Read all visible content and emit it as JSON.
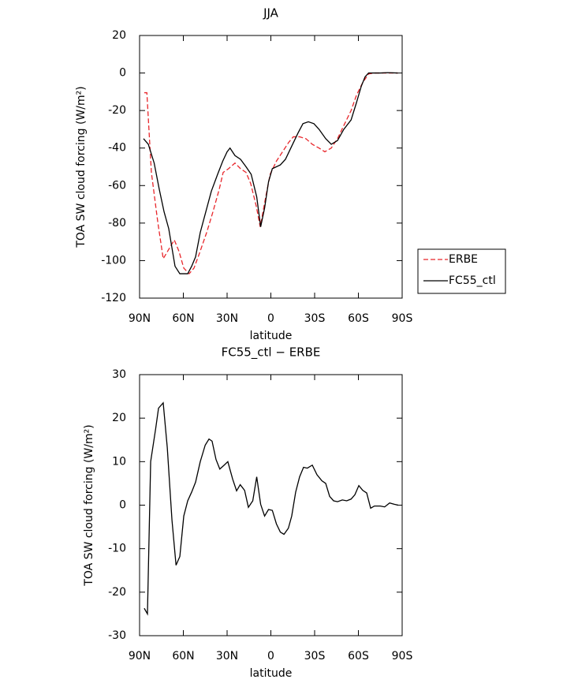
{
  "chart_data": [
    {
      "type": "line",
      "title": "JJA",
      "xlabel": "latitude",
      "ylabel": "TOA SW cloud forcing (W/m²)",
      "xlim": [
        90,
        -90
      ],
      "xticks": [
        {
          "value": 90,
          "label": "90N"
        },
        {
          "value": 60,
          "label": "60N"
        },
        {
          "value": 30,
          "label": "30N"
        },
        0,
        {
          "value": -30,
          "label": "30S"
        },
        {
          "value": -60,
          "label": "60S"
        },
        {
          "value": -90,
          "label": "90S"
        }
      ],
      "ylim": [
        -120,
        20
      ],
      "yticks": [
        -120,
        -100,
        -80,
        -60,
        -40,
        -20,
        0,
        20
      ],
      "legend": "right",
      "series": [
        {
          "name": "ERBE",
          "color": "#e8262b",
          "style": "dashed",
          "x": [
            86.8,
            85,
            81.9,
            77.6,
            73.8,
            70,
            66.2,
            63,
            59.7,
            56,
            52.7,
            48.9,
            44,
            39.7,
            35.4,
            32.7,
            29,
            24.6,
            20.8,
            17,
            13.8,
            10,
            7.3,
            3.5,
            0.5,
            -3.8,
            -8,
            -12.2,
            -15.4,
            -19.7,
            -24,
            -28.4,
            -33,
            -37,
            -41.4,
            -45.7,
            -50,
            -55,
            -58.6,
            -63,
            -67,
            -71,
            -87
          ],
          "values": [
            -10.5,
            -10.5,
            -53,
            -79,
            -99,
            -94,
            -89,
            -95,
            -104,
            -107,
            -104,
            -96,
            -85,
            -74,
            -62,
            -53,
            -51,
            -48,
            -51,
            -53,
            -59,
            -71,
            -82,
            -66,
            -54,
            -47,
            -42,
            -37,
            -34,
            -34,
            -35,
            -38,
            -40,
            -42,
            -40,
            -35,
            -28,
            -20,
            -12,
            -5,
            -0.5,
            0,
            0
          ]
        },
        {
          "name": "FC55_ctl",
          "color": "#000000",
          "style": "solid",
          "x": [
            87.3,
            84,
            80,
            76.5,
            73.2,
            70,
            65.7,
            62.4,
            57,
            54.3,
            51.6,
            48.4,
            44.6,
            40.8,
            36.5,
            33,
            30,
            28,
            24.6,
            20.8,
            17,
            13.5,
            9.7,
            7,
            4.3,
            1.6,
            -1,
            -6.5,
            -10,
            -14.3,
            -18.6,
            -22,
            -25.7,
            -29.5,
            -33,
            -37.6,
            -41.4,
            -45.7,
            -50,
            -55,
            -58.6,
            -62,
            -64.6,
            -67,
            -75,
            -80,
            -87
          ],
          "values": [
            -35,
            -38,
            -48,
            -62,
            -74,
            -83,
            -103,
            -107,
            -107,
            -103,
            -98,
            -85,
            -74,
            -63,
            -54,
            -47,
            -42,
            -40,
            -44,
            -46,
            -50,
            -54,
            -66,
            -82,
            -72,
            -58,
            -51,
            -49,
            -46,
            -39,
            -32,
            -27,
            -26,
            -27,
            -30,
            -35,
            -38,
            -36,
            -30,
            -25,
            -16,
            -7,
            -2,
            0,
            0,
            0.2,
            0
          ]
        }
      ]
    },
    {
      "type": "line",
      "title": "FC55_ctl − ERBE",
      "xlabel": "latitude",
      "ylabel": "TOA SW cloud forcing (W/m²)",
      "xlim": [
        90,
        -90
      ],
      "xticks": [
        {
          "value": 90,
          "label": "90N"
        },
        {
          "value": 60,
          "label": "60N"
        },
        {
          "value": 30,
          "label": "30N"
        },
        0,
        {
          "value": -30,
          "label": "30S"
        },
        {
          "value": -60,
          "label": "60S"
        },
        {
          "value": -90,
          "label": "90S"
        }
      ],
      "ylim": [
        -30,
        30
      ],
      "yticks": [
        -30,
        -20,
        -10,
        0,
        10,
        20,
        30
      ],
      "series": [
        {
          "color": "#000000",
          "style": "solid",
          "x": [
            86.8,
            84.6,
            82.4,
            79,
            77,
            73.8,
            71,
            67.8,
            65,
            62.4,
            59.7,
            57,
            54.3,
            51.6,
            48.4,
            45,
            42.4,
            40.3,
            37.6,
            35,
            32,
            29.5,
            26.2,
            23.5,
            21,
            18,
            15.4,
            12.4,
            9.7,
            7,
            4.3,
            1.6,
            -1,
            -3.8,
            -6.5,
            -9,
            -12,
            -14.3,
            -17,
            -19.7,
            -22.4,
            -25,
            -28.4,
            -31.6,
            -35,
            -37.6,
            -40.3,
            -43,
            -45.7,
            -49,
            -52,
            -55,
            -57.6,
            -60.3,
            -63,
            -65.7,
            -68.4,
            -71,
            -75,
            -78,
            -81.4,
            -84.6,
            -87.3
          ],
          "values": [
            -23.7,
            -25,
            10,
            17.5,
            22.3,
            23.5,
            13.2,
            -3.4,
            -13.8,
            -11.8,
            -2.5,
            1,
            3,
            5.3,
            10,
            13.8,
            15.2,
            14.7,
            10.5,
            8.3,
            9.2,
            10,
            6,
            3.3,
            4.7,
            3.4,
            -0.5,
            1,
            6.5,
            0.2,
            -2.5,
            -1,
            -1.2,
            -4.3,
            -6.2,
            -6.7,
            -5.3,
            -2.5,
            3,
            6.5,
            8.7,
            8.5,
            9.2,
            7,
            5.6,
            5,
            2,
            1,
            0.8,
            1.2,
            1,
            1.4,
            2.4,
            4.5,
            3.4,
            2.8,
            -0.7,
            -0.2,
            -0.2,
            -0.4,
            0.5,
            0.2,
            0
          ]
        }
      ]
    }
  ]
}
